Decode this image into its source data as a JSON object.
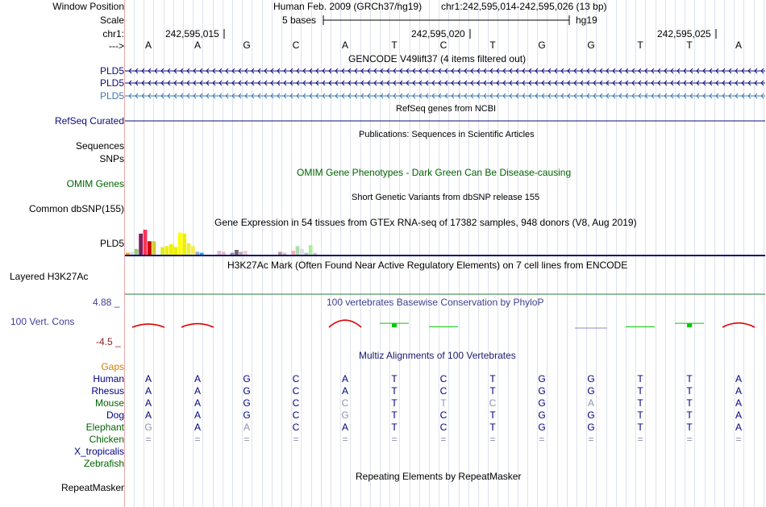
{
  "position": {
    "label": "Window Position",
    "assembly": "Human Feb. 2009 (GRCh37/hg19)",
    "range": "chr1:242,595,014-242,595,026 (13 bp)"
  },
  "scale": {
    "label": "Scale",
    "bases": "5 bases",
    "db": "hg19"
  },
  "chrom": {
    "label": "chr1:",
    "arrow_label": "--->",
    "ticks": [
      "242,595,015",
      "242,595,020",
      "242,595,025"
    ]
  },
  "bases": [
    "A",
    "A",
    "G",
    "C",
    "A",
    "T",
    "C",
    "T",
    "G",
    "G",
    "T",
    "T",
    "A"
  ],
  "tracks": {
    "gencode": {
      "title": "GENCODE V49lift37 (4 items filtered out)",
      "genes": [
        "PLD5",
        "PLD5",
        "PLD5"
      ]
    },
    "refseq": {
      "title": "RefSeq genes from NCBI",
      "label": "RefSeq Curated"
    },
    "pubs": {
      "title": "Publications: Sequences in Scientific Articles",
      "labels": [
        "Sequences",
        "SNPs"
      ]
    },
    "omim": {
      "title": "OMIM Gene Phenotypes - Dark Green Can Be Disease-causing",
      "label": "OMIM Genes"
    },
    "dbsnp": {
      "title": "Short Genetic Variants from dbSNP release 155",
      "label": "Common dbSNP(155)"
    },
    "gtex": {
      "title": "Gene Expression in 54 tissues from GTEx RNA-seq of 17382 samples, 948 donors (V8, Aug 2019)",
      "label": "PLD5",
      "values": [
        2,
        3,
        6,
        22,
        26,
        14,
        14,
        0,
        8,
        9,
        11,
        8,
        23,
        22,
        12,
        9,
        3,
        2,
        0,
        0,
        0,
        4,
        3,
        0,
        2,
        5,
        3,
        4,
        0,
        0,
        0,
        0,
        0,
        0,
        0,
        3,
        2,
        0,
        4,
        9,
        6,
        2,
        10,
        2,
        0,
        0,
        0,
        0,
        0,
        0,
        0,
        0,
        0,
        0
      ],
      "colors": [
        "#ffaa00",
        "#dddddd",
        "#99cc77",
        "#7f1f5f",
        "#ff3355",
        "#cc0000",
        "#cccc33",
        "#ffffff",
        "#ddee22",
        "#eeee00",
        "#eeee00",
        "#eeee00",
        "#ffff00",
        "#eeee00",
        "#eeee33",
        "#eeee55",
        "#99aacc",
        "#00aaee",
        "#ffffff",
        "#ffffff",
        "#ffffff",
        "#ddbbcc",
        "#ddbbcc",
        "#ffffff",
        "#998899",
        "#776677",
        "#bbaaaa",
        "#eecccc",
        "#ffffff",
        "#ffffff",
        "#ffffff",
        "#ffffff",
        "#ffffff",
        "#ffffff",
        "#ffffff",
        "#bb9999",
        "#ccbbbb",
        "#ffffff",
        "#ffaabb",
        "#aaddaa",
        "#dddddd",
        "#bbbbbb",
        "#aaee99",
        "#cccccc",
        "#ffffff",
        "#ffffff",
        "#ffffff",
        "#ffffff",
        "#ffffff",
        "#ffffff",
        "#ffffff",
        "#ffffff",
        "#ffffff",
        "#ffffff"
      ]
    },
    "h3k27ac": {
      "title": "H3K27Ac Mark (Often Found Near Active Regulatory Elements) on 7 cell lines from ENCODE",
      "label": "Layered H3K27Ac"
    },
    "phylop": {
      "title": "100 vertebrates Basewise Conservation by PhyloP",
      "label": "100 Vert. Cons",
      "max": "4.88 _",
      "min": "-4.5 _",
      "ylim": [
        -4.5,
        4.88
      ],
      "values": [
        -0.9,
        -1.0,
        0,
        0,
        -2.0,
        1.1,
        0.15,
        0,
        0,
        -0.1,
        0.1,
        1.1,
        -1.2
      ],
      "colors": {
        "pos": "#00cc00",
        "neg": "#dd0000",
        "zero": "#8888cc"
      }
    },
    "multiz": {
      "title": "Multiz Alignments of 100 Vertebrates",
      "gaps_label": "Gaps",
      "species": [
        {
          "name": "Human",
          "color": "#000080",
          "seq": [
            "A",
            "A",
            "G",
            "C",
            "A",
            "T",
            "C",
            "T",
            "G",
            "G",
            "T",
            "T",
            "A"
          ],
          "faint": []
        },
        {
          "name": "Rhesus",
          "color": "#000080",
          "seq": [
            "A",
            "A",
            "G",
            "C",
            "A",
            "T",
            "C",
            "T",
            "G",
            "G",
            "T",
            "T",
            "A"
          ],
          "faint": []
        },
        {
          "name": "Mouse",
          "color": "#006400",
          "seq": [
            "A",
            "A",
            "G",
            "C",
            "C",
            "T",
            "T",
            "C",
            "G",
            "A",
            "T",
            "T",
            "A"
          ],
          "faint": [
            4,
            6,
            7,
            9
          ]
        },
        {
          "name": "Dog",
          "color": "#000080",
          "seq": [
            "A",
            "A",
            "G",
            "C",
            "G",
            "T",
            "C",
            "T",
            "G",
            "G",
            "T",
            "T",
            "A"
          ],
          "faint": [
            4
          ]
        },
        {
          "name": "Elephant",
          "color": "#006400",
          "seq": [
            "G",
            "A",
            "A",
            "C",
            "A",
            "T",
            "C",
            "T",
            "G",
            "G",
            "T",
            "T",
            "A"
          ],
          "faint": [
            0,
            2
          ]
        },
        {
          "name": "Chicken",
          "color": "#006400",
          "seq": [
            "=",
            "=",
            "=",
            "=",
            "=",
            "=",
            "=",
            "=",
            "=",
            "=",
            "=",
            "=",
            "="
          ],
          "faint": [
            0,
            1,
            2,
            3,
            4,
            5,
            6,
            7,
            8,
            9,
            10,
            11,
            12
          ]
        },
        {
          "name": "X_tropicalis",
          "color": "#000080",
          "seq": [],
          "faint": []
        },
        {
          "name": "Zebrafish",
          "color": "#006400",
          "seq": [],
          "faint": []
        }
      ]
    },
    "rmsk": {
      "title": "Repeating Elements by RepeatMasker",
      "label": "RepeatMasker"
    }
  },
  "colors": {
    "gene": "#0c0c78",
    "gene_light": "#3a7ab0",
    "omim": "#006400",
    "phylop": "#404095",
    "multiz": "#1a1a70",
    "gaps": "#d08000",
    "h3k27ac": "#2a7a3a"
  }
}
